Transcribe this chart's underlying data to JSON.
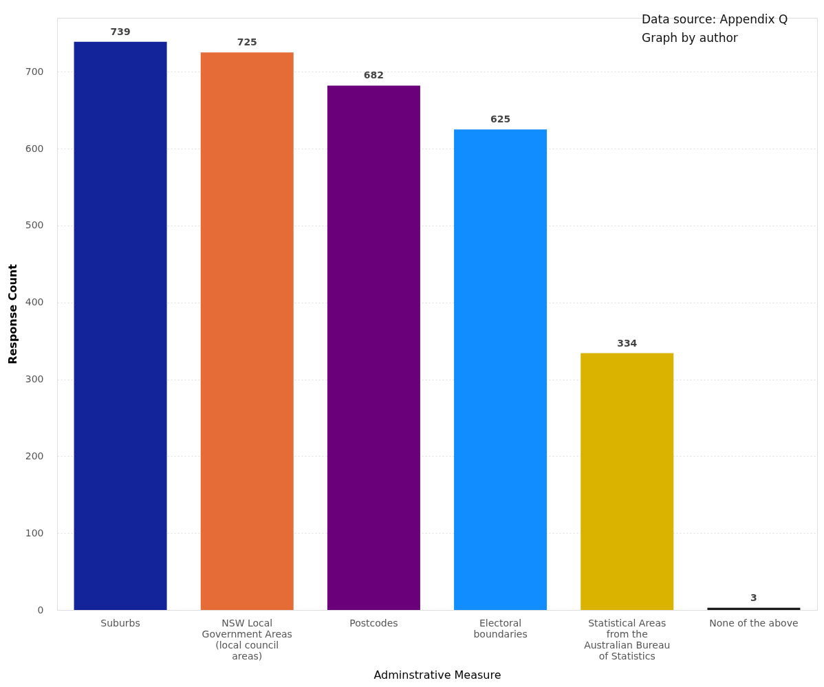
{
  "chart_data": {
    "type": "bar",
    "categories": [
      "Suburbs",
      "NSW Local Government Areas (local council areas)",
      "Postcodes",
      "Electoral boundaries",
      "Statistical Areas from the Australian Bureau of Statistics",
      "None of the above"
    ],
    "values": [
      739,
      725,
      682,
      625,
      334,
      3
    ],
    "colors": [
      "#13239a",
      "#e66c37",
      "#6b007b",
      "#118dff",
      "#d9b300",
      "#1a1a1a"
    ],
    "xlabel": "Adminstrative Measure",
    "ylabel": "Response Count",
    "ylim": [
      0,
      770
    ],
    "yticks": [
      0,
      100,
      200,
      300,
      400,
      500,
      600,
      700
    ],
    "grid": "y",
    "data_labels": true,
    "annotations": [
      "Data source: Appendix Q",
      "Graph by author"
    ]
  }
}
